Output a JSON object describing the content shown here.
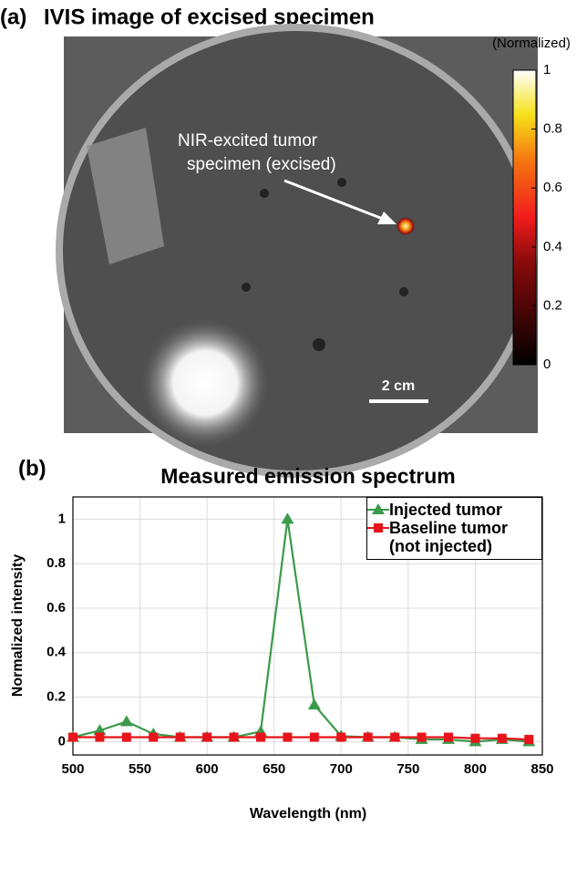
{
  "panel_a": {
    "label": "(a)",
    "title": "IVIS image of excised specimen",
    "annotation": [
      "NIR-excited tumor",
      "specimen (excised)"
    ],
    "scale_bar": "2 cm",
    "colorbar": {
      "label": "(Normalized)",
      "lim": [
        0,
        1
      ],
      "ticks": [
        0,
        0.2,
        0.4,
        0.6,
        0.8,
        1
      ]
    }
  },
  "chart_data": {
    "type": "line",
    "panel_label": "(b)",
    "title": "Measured emission spectrum",
    "x_label": "Wavelength (nm)",
    "y_label": "Normalized intensity",
    "x": [
      500,
      520,
      540,
      560,
      580,
      600,
      620,
      640,
      660,
      680,
      700,
      720,
      740,
      760,
      780,
      800,
      820,
      840
    ],
    "series": [
      {
        "name": "Injected tumor",
        "color": "#3b9a4b",
        "marker": "triangle",
        "values": [
          0.02,
          0.05,
          0.09,
          0.035,
          0.02,
          0.02,
          0.02,
          0.045,
          1.0,
          0.165,
          0.025,
          0.02,
          0.02,
          0.01,
          0.01,
          0.0,
          0.01,
          0.0
        ]
      },
      {
        "name": "Baseline tumor (not injected)",
        "color": "#e8141b",
        "marker": "square",
        "values": [
          0.02,
          0.02,
          0.02,
          0.02,
          0.02,
          0.02,
          0.02,
          0.02,
          0.02,
          0.02,
          0.02,
          0.02,
          0.02,
          0.02,
          0.02,
          0.015,
          0.015,
          0.01
        ]
      }
    ],
    "xlim": [
      500,
      850
    ],
    "xticks": [
      500,
      550,
      600,
      650,
      700,
      750,
      800,
      850
    ],
    "ylim": [
      -0.06,
      1.1
    ],
    "yticks": [
      0,
      0.2,
      0.4,
      0.6,
      0.8,
      1
    ],
    "grid": true,
    "legend": "top-right"
  }
}
